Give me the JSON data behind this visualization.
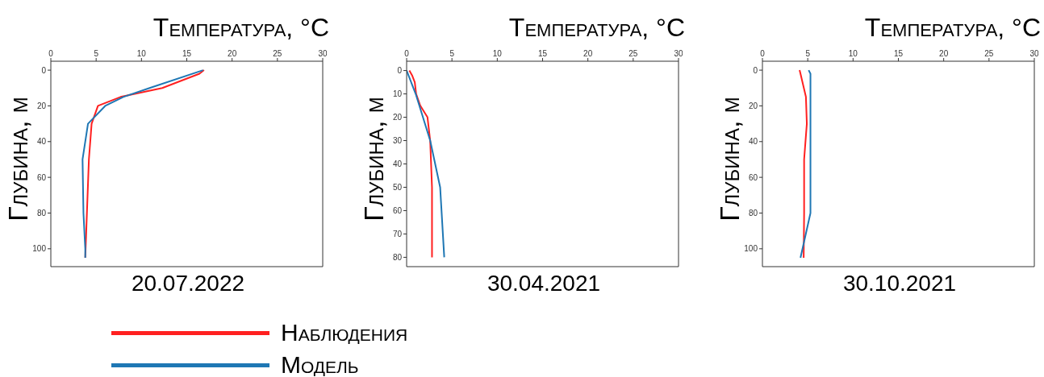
{
  "chart_data": [
    {
      "type": "line",
      "title": "20.07.2022",
      "xlabel": "Температура, °C",
      "ylabel": "Глубина, м",
      "xlim": [
        0,
        30
      ],
      "xticks": [
        0,
        5,
        10,
        15,
        20,
        25,
        30
      ],
      "ylim": [
        110,
        -5
      ],
      "yticks": [
        0,
        20,
        40,
        60,
        80,
        100
      ],
      "grid": false,
      "legend": "bottom",
      "series": [
        {
          "name": "Наблюдения",
          "color": "#ff2020",
          "x": [
            16.9,
            16.4,
            12.3,
            7.7,
            5.2,
            4.5,
            4.2,
            3.8
          ],
          "values": [
            0,
            2,
            10,
            15,
            20,
            30,
            50,
            105
          ]
        },
        {
          "name": "Модель",
          "color": "#1f77b4",
          "x": [
            16.8,
            10.9,
            8,
            6,
            4.1,
            3.5,
            3.6,
            3.8,
            3.8
          ],
          "values": [
            0,
            10,
            15,
            20,
            30,
            50,
            80,
            100,
            105
          ]
        }
      ]
    },
    {
      "type": "line",
      "title": "30.04.2021",
      "xlabel": "Температура, °C",
      "ylabel": "Глубина, м",
      "xlim": [
        0,
        30
      ],
      "xticks": [
        0,
        5,
        10,
        15,
        20,
        25,
        30
      ],
      "ylim": [
        84,
        -4
      ],
      "yticks": [
        0,
        10,
        20,
        30,
        40,
        50,
        60,
        70,
        80
      ],
      "grid": false,
      "series": [
        {
          "color": "#ff2020",
          "x": [
            0.3,
            0.6,
            0.9,
            1.05,
            1.5,
            2.3,
            2.6,
            2.8,
            2.8
          ],
          "values": [
            0,
            2,
            5,
            10,
            15,
            20,
            30,
            50,
            80
          ]
        },
        {
          "color": "#1f77b4",
          "x": [
            0,
            1.0,
            2.6,
            3.7,
            4.15
          ],
          "values": [
            0,
            10,
            30,
            50,
            80
          ]
        }
      ]
    },
    {
      "type": "line",
      "title": "30.10.2021",
      "xlabel": "Температура, °C",
      "ylabel": "Глубина, м",
      "xlim": [
        0,
        30
      ],
      "xticks": [
        0,
        5,
        10,
        15,
        20,
        25,
        30
      ],
      "ylim": [
        110,
        -5
      ],
      "yticks": [
        0,
        20,
        40,
        60,
        80,
        100
      ],
      "grid": false,
      "series": [
        {
          "color": "#ff2020",
          "x": [
            4.1,
            4.2,
            4.8,
            4.9,
            4.6,
            4.6,
            4.55
          ],
          "values": [
            0,
            2,
            15,
            30,
            50,
            80,
            105
          ]
        },
        {
          "color": "#1f77b4",
          "x": [
            5.1,
            5.3,
            5.3,
            4.2
          ],
          "values": [
            0,
            2,
            80,
            105
          ]
        }
      ]
    }
  ]
}
